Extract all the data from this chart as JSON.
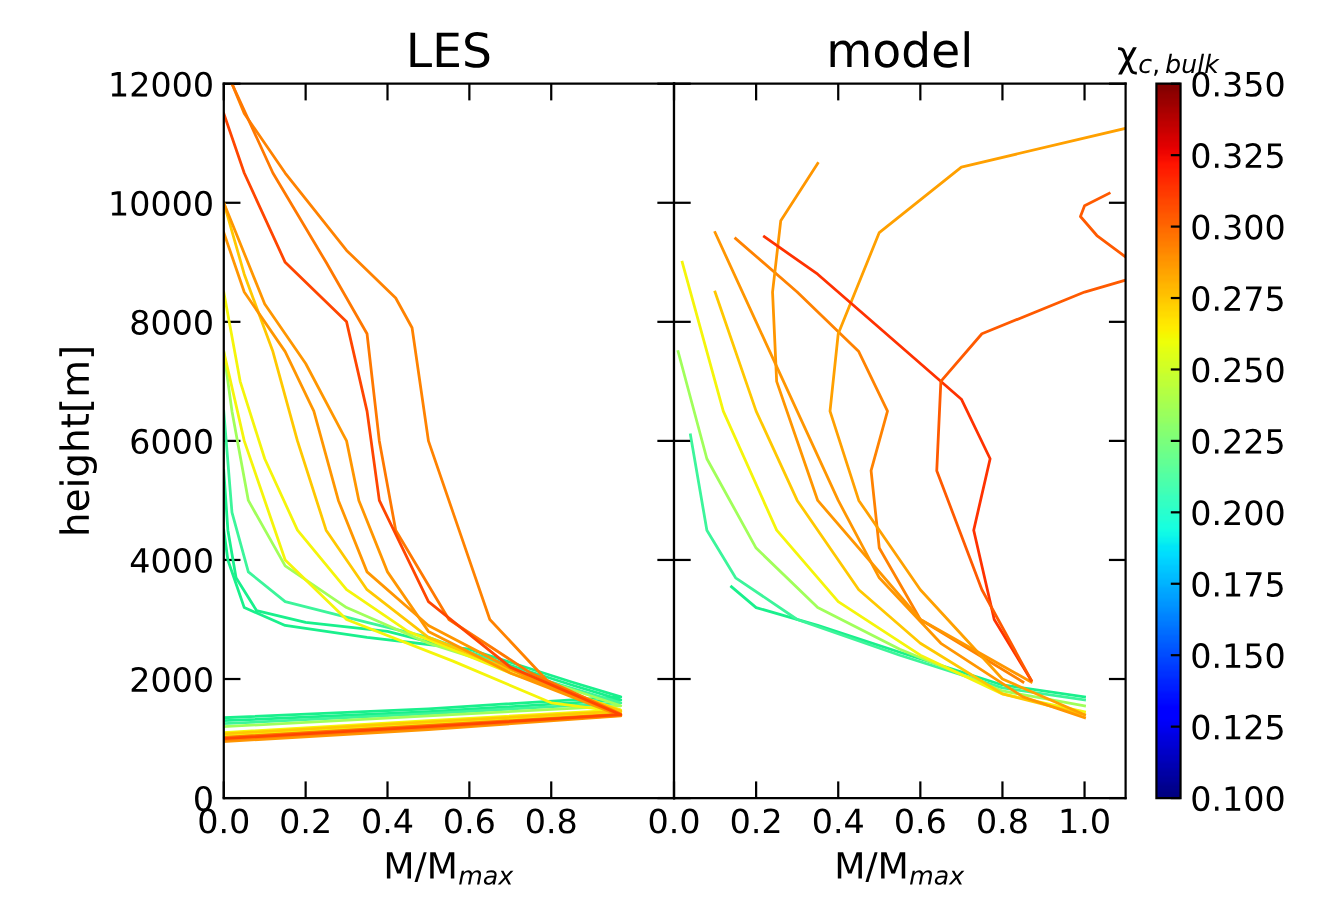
{
  "chart_data": [
    {
      "type": "line",
      "title": "LES",
      "xlabel": "M/M$_{max}$",
      "ylabel": "height[m]",
      "xlim": [
        0,
        1.1
      ],
      "xticks": [
        {
          "value": 0,
          "label": "0.0"
        },
        {
          "value": 0.2,
          "label": "0.2"
        },
        {
          "value": 0.4,
          "label": "0.4"
        },
        {
          "value": 0.6,
          "label": "0.6"
        },
        {
          "value": 0.8,
          "label": "0.8"
        }
      ],
      "ylim": [
        0,
        12000
      ],
      "yticks": [
        0,
        2000,
        4000,
        6000,
        8000,
        10000,
        12000
      ],
      "grid": false,
      "series": [
        {
          "color": "#19f08c",
          "x": [
            0,
            0.5,
            0.97,
            0.85,
            0.6,
            0.35,
            0.15,
            0.05,
            0.01,
            0
          ],
          "values": [
            1350,
            1500,
            1700,
            1950,
            2500,
            2700,
            2900,
            3200,
            4000,
            4500
          ]
        },
        {
          "color": "#19f08c",
          "x": [
            0,
            0.5,
            0.97,
            0.85,
            0.6,
            0.4,
            0.2,
            0.08,
            0.03,
            0.01,
            0
          ],
          "values": [
            1300,
            1450,
            1650,
            1900,
            2450,
            2800,
            2950,
            3150,
            3700,
            4500,
            5500
          ]
        },
        {
          "color": "#3cf59a",
          "x": [
            0,
            0.5,
            0.97,
            0.8,
            0.5,
            0.35,
            0.15,
            0.06,
            0.02,
            0
          ],
          "values": [
            1250,
            1420,
            1600,
            1950,
            2700,
            2950,
            3300,
            3800,
            4800,
            6500
          ]
        },
        {
          "color": "#a0ff5a",
          "x": [
            0,
            0.5,
            0.97,
            0.75,
            0.5,
            0.3,
            0.15,
            0.06,
            0.02,
            0
          ],
          "values": [
            1200,
            1380,
            1550,
            2050,
            2600,
            3200,
            3900,
            5000,
            6500,
            7500
          ]
        },
        {
          "color": "#f5f50a",
          "x": [
            0,
            0.5,
            0.97,
            0.7,
            0.45,
            0.3,
            0.18,
            0.1,
            0.04,
            0
          ],
          "values": [
            1100,
            1300,
            1480,
            2100,
            2800,
            3500,
            4500,
            5700,
            7000,
            8500
          ]
        },
        {
          "color": "#f5f50a",
          "x": [
            0,
            0.5,
            0.97,
            0.8,
            0.56,
            0.3,
            0.15,
            0.05,
            0
          ],
          "values": [
            1050,
            1250,
            1450,
            1600,
            2300,
            3000,
            4000,
            6000,
            7500
          ]
        },
        {
          "color": "#ffc800",
          "x": [
            0,
            0.5,
            0.97,
            0.72,
            0.5,
            0.35,
            0.25,
            0.18,
            0.12,
            0.05,
            0
          ],
          "values": [
            1080,
            1280,
            1460,
            2100,
            2700,
            3500,
            4500,
            6000,
            7500,
            8800,
            10000
          ]
        },
        {
          "color": "#ff9600",
          "x": [
            0,
            0.5,
            0.97,
            0.75,
            0.5,
            0.35,
            0.28,
            0.22,
            0.15,
            0.05,
            0
          ],
          "values": [
            1000,
            1200,
            1400,
            2000,
            2900,
            3800,
            5000,
            6500,
            7500,
            8500,
            9500
          ]
        },
        {
          "color": "#ff9600",
          "x": [
            0,
            0.5,
            0.97,
            0.7,
            0.5,
            0.4,
            0.33,
            0.3,
            0.2,
            0.1,
            0
          ],
          "values": [
            950,
            1150,
            1380,
            2100,
            2800,
            3800,
            5000,
            6000,
            7300,
            8300,
            10000
          ]
        },
        {
          "color": "#ff8200",
          "x": [
            0,
            0.5,
            0.97,
            0.8,
            0.65,
            0.56,
            0.5,
            0.46,
            0.42,
            0.3,
            0.15,
            0.05,
            0.02
          ],
          "values": [
            980,
            1180,
            1390,
            1900,
            3000,
            4800,
            6000,
            7900,
            8400,
            9200,
            10500,
            11500,
            12000
          ]
        },
        {
          "color": "#ff7800",
          "x": [
            0,
            0.5,
            0.97,
            0.75,
            0.55,
            0.42,
            0.38,
            0.35,
            0.25,
            0.12,
            0.02
          ],
          "values": [
            1020,
            1220,
            1410,
            2100,
            3000,
            4500,
            6000,
            7800,
            9000,
            10500,
            12000
          ]
        },
        {
          "color": "#ff4600",
          "x": [
            0,
            0.5,
            0.97,
            0.7,
            0.5,
            0.38,
            0.35,
            0.3,
            0.15,
            0.05,
            0
          ],
          "values": [
            1000,
            1200,
            1400,
            2200,
            3300,
            5000,
            6500,
            8000,
            9000,
            10500,
            11500
          ]
        }
      ]
    },
    {
      "type": "line",
      "title": "model",
      "xlabel": "M/M$_{max}$",
      "xlim": [
        0,
        1.1
      ],
      "xticks": [
        {
          "value": 0,
          "label": "0.0"
        },
        {
          "value": 0.2,
          "label": "0.2"
        },
        {
          "value": 0.4,
          "label": "0.4"
        },
        {
          "value": 0.6,
          "label": "0.6"
        },
        {
          "value": 0.8,
          "label": "0.8"
        },
        {
          "value": 1.0,
          "label": "1.0"
        }
      ],
      "ylim": [
        0,
        12000
      ],
      "yticks": [
        0,
        2000,
        4000,
        6000,
        8000,
        10000,
        12000
      ],
      "tick_labels": "x",
      "grid": false,
      "clabel": "χ$_{c,bulk}$",
      "clim": [
        0.1,
        0.35
      ],
      "cticks": [
        {
          "value": 0.1,
          "label": "0.100"
        },
        {
          "value": 0.125,
          "label": "0.125"
        },
        {
          "value": 0.15,
          "label": "0.150"
        },
        {
          "value": 0.175,
          "label": "0.175"
        },
        {
          "value": 0.2,
          "label": "0.200"
        },
        {
          "value": 0.225,
          "label": "0.225"
        },
        {
          "value": 0.25,
          "label": "0.250"
        },
        {
          "value": 0.275,
          "label": "0.275"
        },
        {
          "value": 0.3,
          "label": "0.300"
        },
        {
          "value": 0.325,
          "label": "0.325"
        },
        {
          "value": 0.35,
          "label": "0.350"
        }
      ],
      "series": [
        {
          "color": "#19f08c",
          "x": [
            1.0,
            0.8,
            0.55,
            0.35,
            0.2,
            0.14
          ],
          "values": [
            1700,
            1900,
            2450,
            2900,
            3200,
            3550
          ]
        },
        {
          "color": "#3cf59a",
          "x": [
            1.0,
            0.8,
            0.55,
            0.3,
            0.15,
            0.08,
            0.04
          ],
          "values": [
            1650,
            1850,
            2400,
            3000,
            3700,
            4500,
            6100
          ]
        },
        {
          "color": "#a0ff5a",
          "x": [
            1.0,
            0.8,
            0.55,
            0.35,
            0.2,
            0.08,
            0.01
          ],
          "values": [
            1550,
            1800,
            2500,
            3200,
            4200,
            5700,
            7500
          ]
        },
        {
          "color": "#f5f50a",
          "x": [
            1.0,
            0.8,
            0.6,
            0.4,
            0.25,
            0.12,
            0.02
          ],
          "values": [
            1450,
            1750,
            2400,
            3300,
            4500,
            6500,
            9000
          ]
        },
        {
          "color": "#ffc800",
          "x": [
            1.0,
            0.8,
            0.6,
            0.45,
            0.3,
            0.2,
            0.1
          ],
          "values": [
            1400,
            1750,
            2600,
            3500,
            5000,
            6500,
            8500
          ]
        },
        {
          "color": "#ff9600",
          "x": [
            1.0,
            0.85,
            0.65,
            0.5,
            0.4,
            0.3,
            0.2,
            0.1
          ],
          "values": [
            1350,
            1700,
            2600,
            3700,
            5000,
            6500,
            8000,
            9500
          ]
        },
        {
          "color": "#ff8200",
          "x": [
            0.85,
            0.6,
            0.5,
            0.48,
            0.52,
            0.45,
            0.3,
            0.15
          ],
          "values": [
            1950,
            3000,
            4200,
            5500,
            6500,
            7500,
            8500,
            9400
          ]
        },
        {
          "color": "#ffa000",
          "x": [
            1.0,
            0.8,
            0.6,
            0.45,
            0.38,
            0.4,
            0.5,
            0.7,
            1.1
          ],
          "values": [
            1400,
            2000,
            3500,
            5000,
            6500,
            7800,
            9500,
            10600,
            11250
          ]
        },
        {
          "color": "#ff9600",
          "x": [
            0.87,
            0.6,
            0.35,
            0.25,
            0.24,
            0.26,
            0.35
          ],
          "values": [
            1950,
            3000,
            5000,
            7000,
            8500,
            9700,
            10660
          ]
        },
        {
          "color": "#ff3200",
          "x": [
            0.87,
            0.78,
            0.73,
            0.77,
            0.7,
            0.5,
            0.35,
            0.22
          ],
          "values": [
            1980,
            3000,
            4500,
            5700,
            6700,
            7900,
            8800,
            9430
          ]
        },
        {
          "color": "#ff5a00",
          "x": [
            0.87,
            0.75,
            0.64,
            0.65,
            0.75,
            1.0,
            1.1
          ],
          "values": [
            1980,
            3500,
            5500,
            7000,
            7800,
            8500,
            8700
          ]
        },
        {
          "color": "#ff5a00",
          "x": [
            1.06,
            1.0,
            0.99,
            1.03,
            1.1
          ],
          "values": [
            10160,
            9950,
            9770,
            9450,
            9090
          ]
        }
      ]
    }
  ]
}
